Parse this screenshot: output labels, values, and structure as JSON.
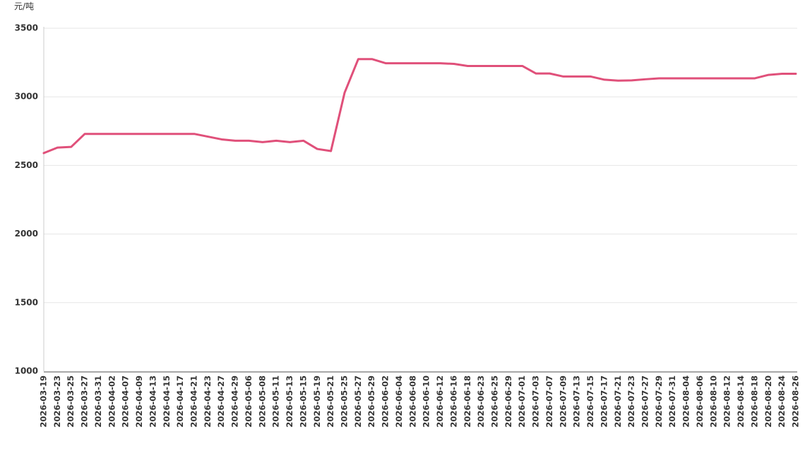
{
  "chart_data": {
    "type": "line",
    "y_label": "元/吨",
    "categories": [
      "2026-03-19",
      "2026-03-23",
      "2026-03-25",
      "2026-03-27",
      "2026-03-31",
      "2026-04-02",
      "2026-04-07",
      "2026-04-09",
      "2026-04-13",
      "2026-04-15",
      "2026-04-17",
      "2026-04-21",
      "2026-04-23",
      "2026-04-27",
      "2026-04-29",
      "2026-05-06",
      "2026-05-08",
      "2026-05-11",
      "2026-05-13",
      "2026-05-15",
      "2026-05-19",
      "2026-05-21",
      "2026-05-25",
      "2026-05-27",
      "2026-05-29",
      "2026-06-02",
      "2026-06-04",
      "2026-06-08",
      "2026-06-10",
      "2026-06-12",
      "2026-06-16",
      "2026-06-18",
      "2026-06-23",
      "2026-06-25",
      "2026-06-29",
      "2026-07-01",
      "2026-07-03",
      "2026-07-07",
      "2026-07-09",
      "2026-07-13",
      "2026-07-15",
      "2026-07-17",
      "2026-07-21",
      "2026-07-23",
      "2026-07-27",
      "2026-07-29",
      "2026-07-31",
      "2026-08-04",
      "2026-08-06",
      "2026-08-10",
      "2026-08-12",
      "2026-08-14",
      "2026-08-18",
      "2026-08-20",
      "2026-08-24",
      "2026-08-26"
    ],
    "values": [
      2590,
      2630,
      2635,
      2730,
      2730,
      2730,
      2730,
      2730,
      2730,
      2730,
      2730,
      2730,
      2710,
      2690,
      2680,
      2680,
      2670,
      2680,
      2670,
      2680,
      2620,
      2605,
      3030,
      3275,
      3275,
      3245,
      3245,
      3245,
      3245,
      3245,
      3240,
      3225,
      3225,
      3225,
      3225,
      3225,
      3170,
      3170,
      3148,
      3148,
      3148,
      3125,
      3118,
      3120,
      3128,
      3135,
      3135,
      3135,
      3135,
      3135,
      3135,
      3135,
      3135,
      3160,
      3168,
      3168
    ],
    "color": "#e0507a",
    "ylim": [
      1000,
      3500
    ],
    "yticks": [
      1000,
      1500,
      2000,
      2500,
      3000,
      3500
    ],
    "grid": true
  }
}
